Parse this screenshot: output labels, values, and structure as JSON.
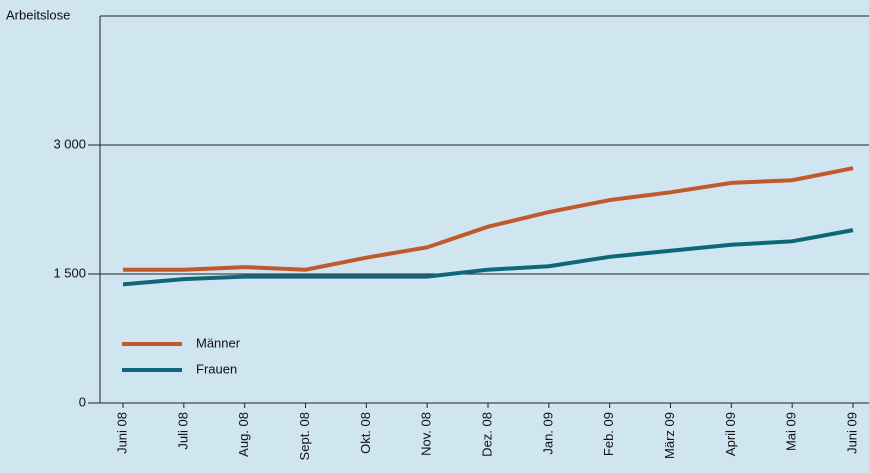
{
  "chart_data": {
    "type": "line",
    "y_label": "Arbeitslose",
    "categories": [
      "Juni 08",
      "Juli 08",
      "Aug. 08",
      "Sept. 08",
      "Okt. 08",
      "Nov. 08",
      "Dez. 08",
      "Jan. 09",
      "Feb. 09",
      "März 09",
      "April 09",
      "Mai 09",
      "Juni 09"
    ],
    "series": [
      {
        "name": "Männer",
        "color": "#c05a2c",
        "values": [
          1550,
          1550,
          1580,
          1550,
          1690,
          1810,
          2050,
          2220,
          2360,
          2450,
          2560,
          2590,
          2730
        ]
      },
      {
        "name": "Frauen",
        "color": "#0f6676",
        "values": [
          1380,
          1440,
          1470,
          1470,
          1470,
          1470,
          1550,
          1590,
          1700,
          1770,
          1840,
          1880,
          2010
        ]
      }
    ],
    "ylim": [
      0,
      4500
    ],
    "yticks": [
      0,
      {
        "value": 1500,
        "label": "1 500"
      },
      {
        "value": 3000,
        "label": "3 000"
      }
    ],
    "grid": true
  }
}
